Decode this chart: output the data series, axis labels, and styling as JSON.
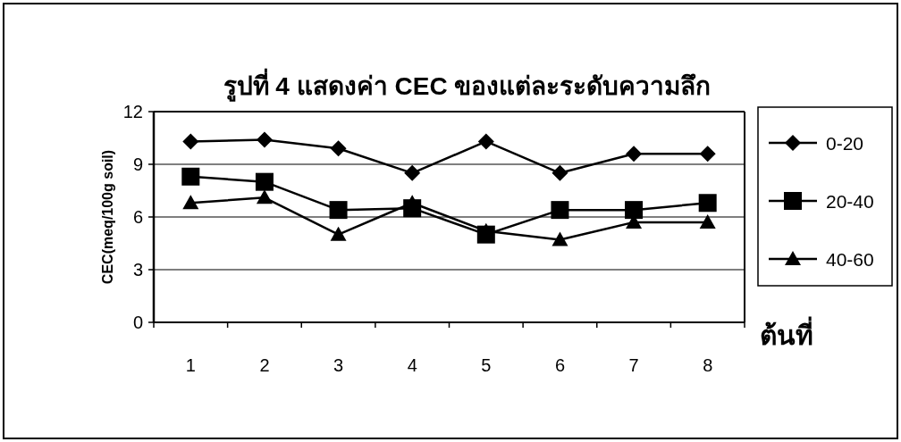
{
  "chart_data": {
    "type": "line",
    "title": "รูปที่ 4 แสดงค่า CEC ของแต่ละระดับความลึก",
    "xlabel": "ต้นที่",
    "ylabel": "CEC(meq/100g soil)",
    "categories": [
      "1",
      "2",
      "3",
      "4",
      "5",
      "6",
      "7",
      "8"
    ],
    "series": [
      {
        "name": "0-20",
        "color": "#000000",
        "marker": "diamond",
        "values": [
          10.3,
          10.4,
          9.9,
          8.5,
          10.3,
          8.5,
          9.6,
          9.6
        ]
      },
      {
        "name": "20-40",
        "color": "#000000",
        "marker": "square",
        "values": [
          8.3,
          8.0,
          6.4,
          6.5,
          5.0,
          6.4,
          6.4,
          6.8
        ]
      },
      {
        "name": "40-60",
        "color": "#000000",
        "marker": "triangle",
        "values": [
          6.8,
          7.1,
          5.0,
          6.8,
          5.2,
          4.7,
          5.7,
          5.7
        ]
      }
    ],
    "ylim": [
      0,
      12
    ],
    "yticks": [
      0,
      3,
      6,
      9,
      12
    ],
    "grid": "y",
    "legend": "right",
    "line_style": "solid"
  }
}
